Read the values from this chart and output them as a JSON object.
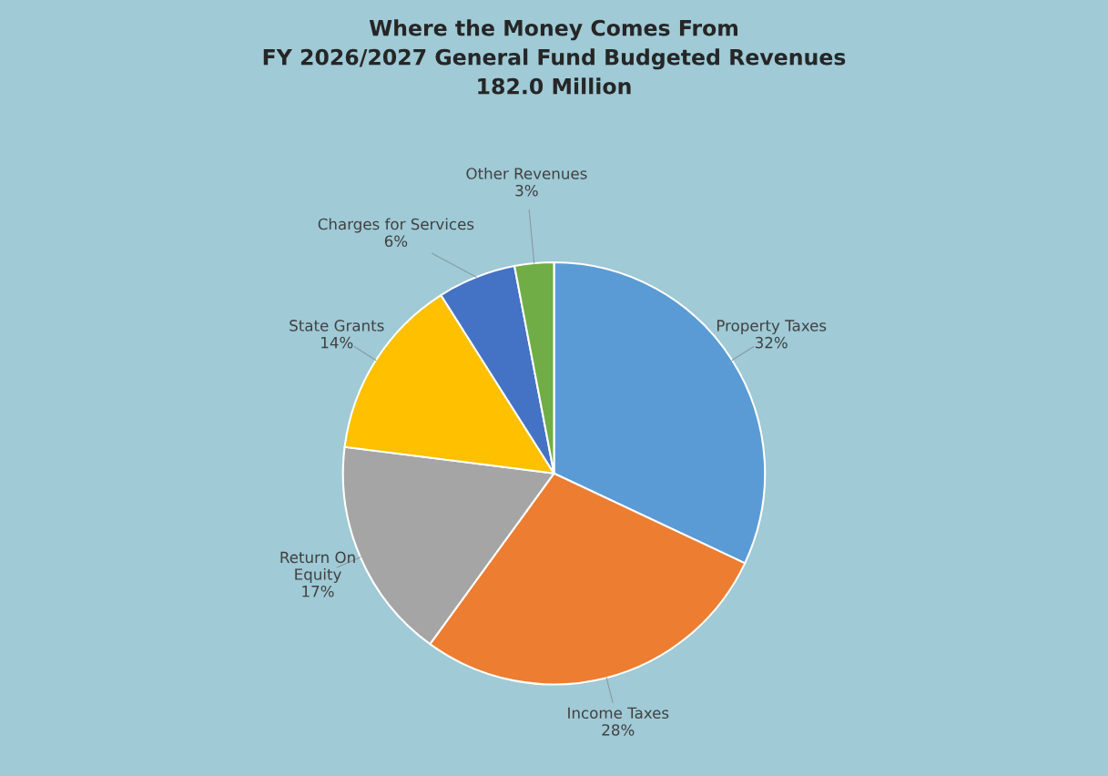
{
  "chart_data": {
    "type": "pie",
    "title": "Where the Money Comes From\nFY 2026/2027 General Fund Budgeted Revenues\n182.0 Million",
    "categories": [
      "Property Taxes",
      "Income Taxes",
      "Return On\nEquity",
      "State Grants",
      "Charges for Services",
      "Other Revenues"
    ],
    "values": [
      32,
      28,
      17,
      14,
      6,
      3
    ],
    "value_labels": [
      "32%",
      "28%",
      "17%",
      "14%",
      "6%",
      "3%"
    ],
    "colors": [
      "#5b9bd5",
      "#ed7d31",
      "#a5a5a5",
      "#ffc000",
      "#4472c4",
      "#70ad47"
    ],
    "legend": false
  }
}
